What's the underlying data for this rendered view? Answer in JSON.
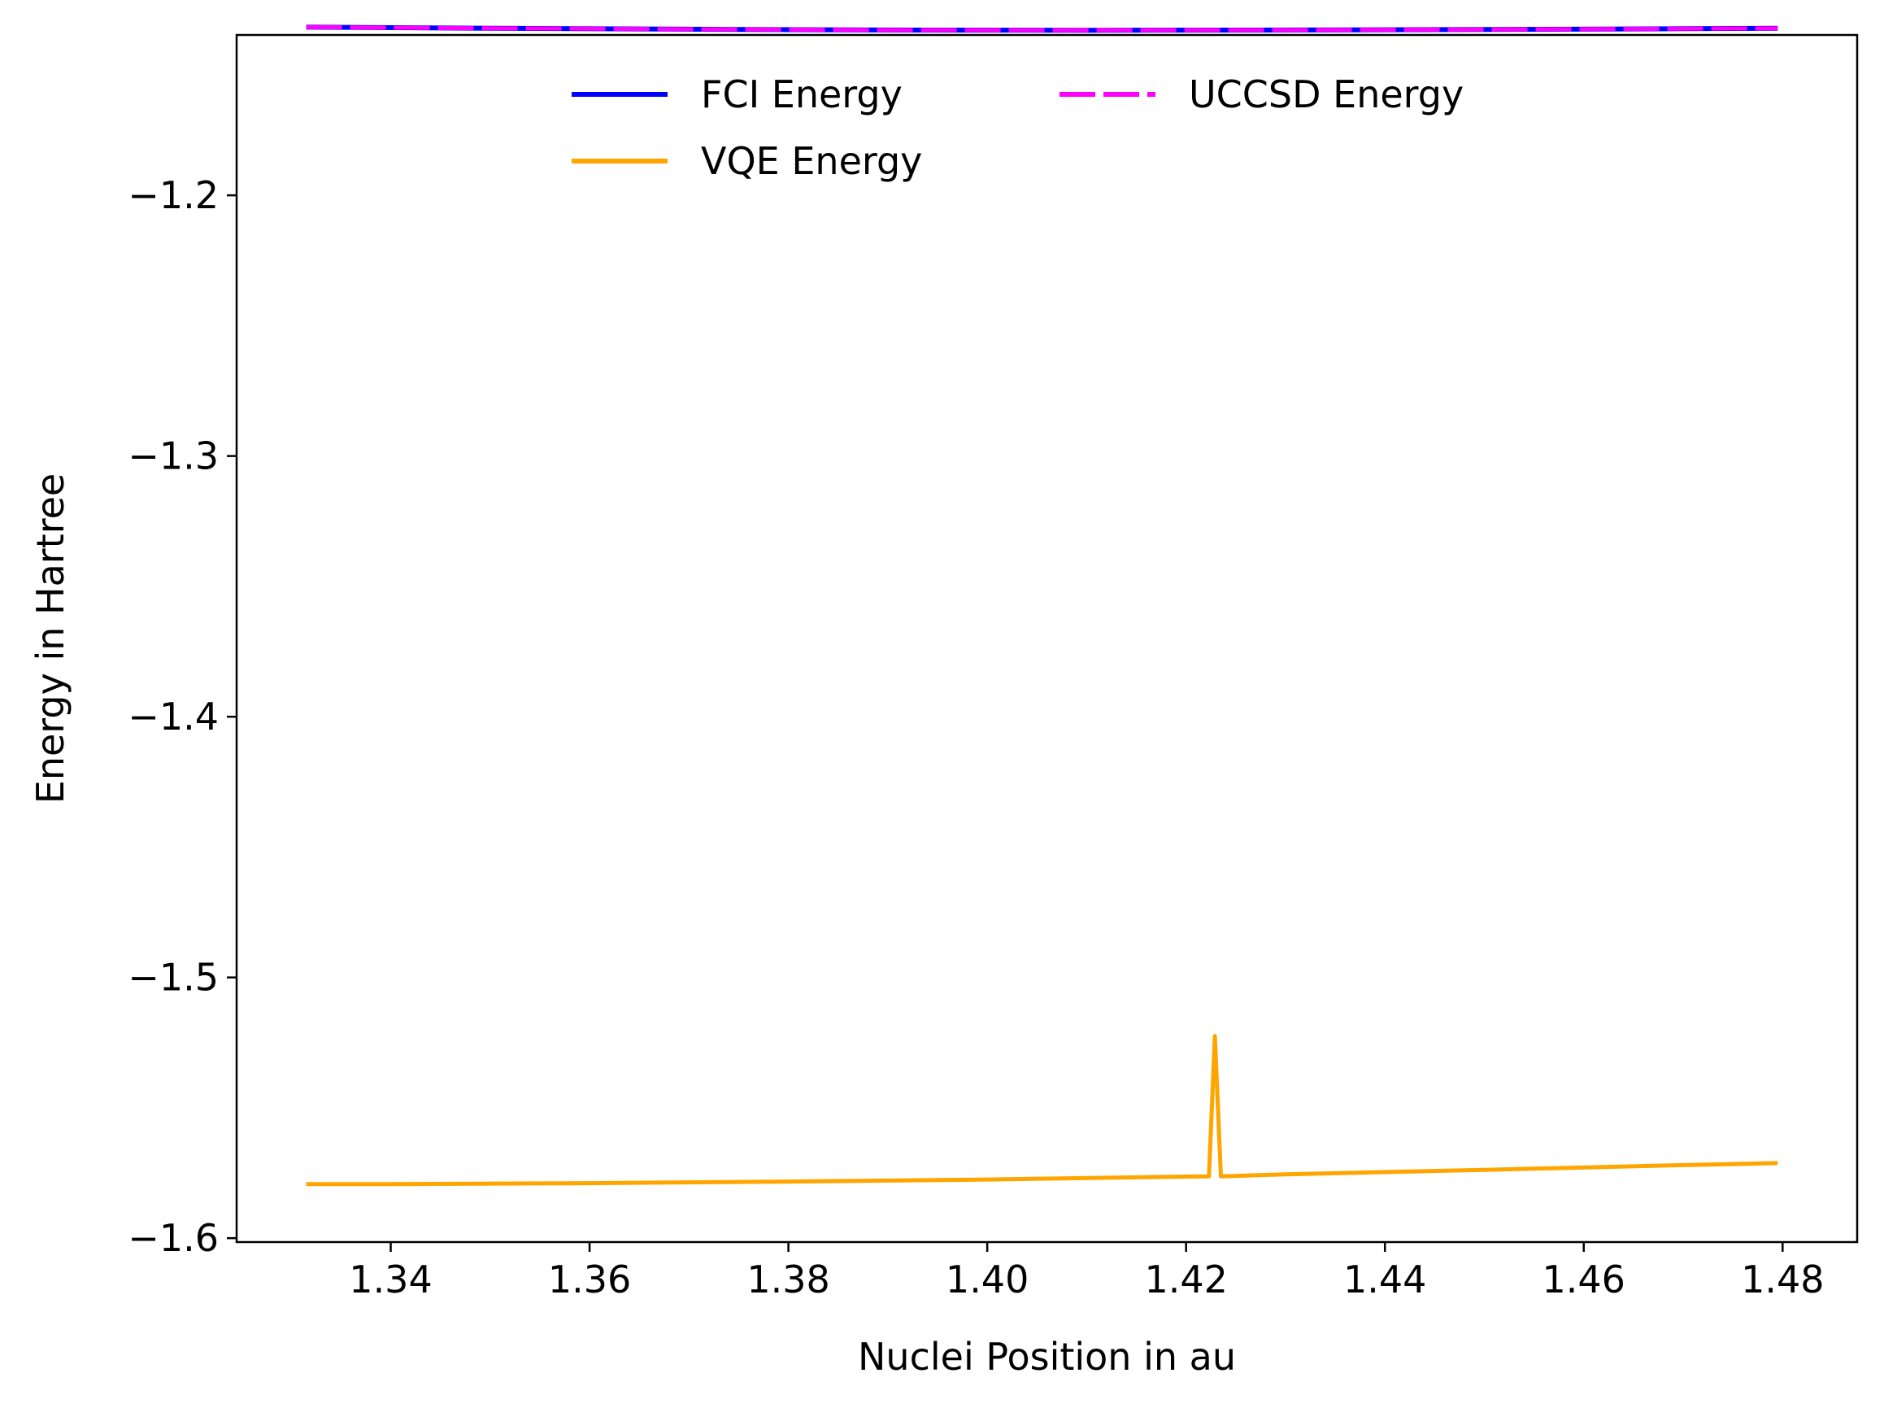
{
  "chart_data": {
    "type": "line",
    "xlabel": "Nuclei Position in au",
    "ylabel": "Energy in Hartree",
    "xlim": [
      1.3245,
      1.4875
    ],
    "ylim": [
      -1.6015,
      -1.1385
    ],
    "xticks": [
      1.34,
      1.36,
      1.38,
      1.4,
      1.42,
      1.44,
      1.46,
      1.48
    ],
    "xtick_labels": [
      "1.34",
      "1.36",
      "1.38",
      "1.40",
      "1.42",
      "1.44",
      "1.46",
      "1.48"
    ],
    "yticks": [
      -1.2,
      -1.3,
      -1.4,
      -1.5,
      -1.6
    ],
    "ytick_labels": [
      "−1.2",
      "−1.3",
      "−1.4",
      "−1.5",
      "−1.6"
    ],
    "grid": false,
    "legend": {
      "placement": "top-center",
      "columns": 2
    },
    "series": [
      {
        "name": "FCI Energy",
        "color": "#0000ff",
        "style": "dashed",
        "x": [
          1.3315,
          1.35,
          1.37,
          1.39,
          1.41,
          1.43,
          1.45,
          1.47,
          1.4795
        ],
        "y": [
          -1.1355,
          -1.1359,
          -1.1363,
          -1.1366,
          -1.1367,
          -1.1366,
          -1.1364,
          -1.1361,
          -1.1359
        ]
      },
      {
        "name": "UCCSD Energy",
        "color": "#ff00ff",
        "style": "dashed",
        "x": [
          1.3315,
          1.35,
          1.37,
          1.39,
          1.41,
          1.43,
          1.45,
          1.47,
          1.4795
        ],
        "y": [
          -1.1355,
          -1.1359,
          -1.1363,
          -1.1366,
          -1.1367,
          -1.1366,
          -1.1364,
          -1.1361,
          -1.1359
        ]
      },
      {
        "name": "VQE Energy",
        "color": "#ffa500",
        "style": "solid",
        "x": [
          1.3315,
          1.34,
          1.36,
          1.38,
          1.4,
          1.42,
          1.4223,
          1.4229,
          1.4235,
          1.43,
          1.45,
          1.47,
          1.4795
        ],
        "y": [
          -1.5793,
          -1.5793,
          -1.5789,
          -1.5783,
          -1.5775,
          -1.5764,
          -1.5763,
          -1.5225,
          -1.5763,
          -1.5755,
          -1.5738,
          -1.572,
          -1.5712
        ]
      }
    ]
  }
}
